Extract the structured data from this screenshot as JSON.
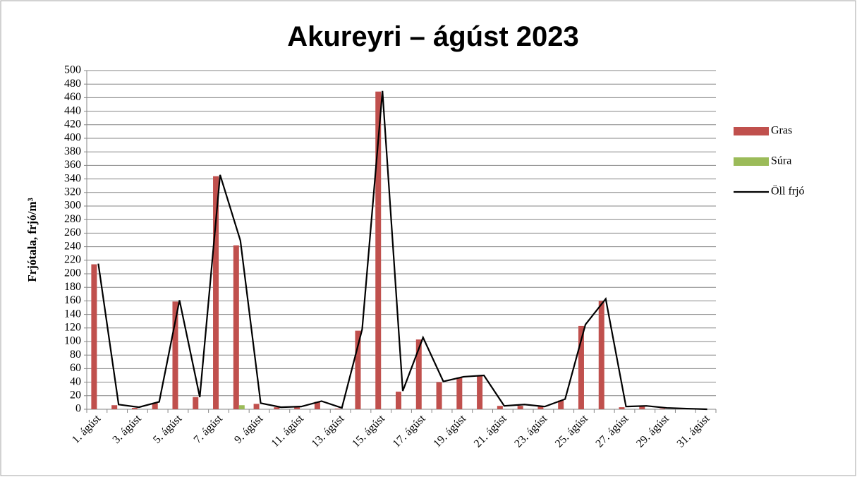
{
  "chart_data": {
    "type": "bar-line",
    "title": "Akureyri – ágúst 2023",
    "y_label": "Frjótala, frjó/m³",
    "categories": [
      "1. ágúst",
      null,
      "3. ágúst",
      null,
      "5. ágúst",
      null,
      "7. ágúst",
      null,
      "9. ágúst",
      null,
      "11. ágúst",
      null,
      "13. ágúst",
      null,
      "15. ágúst",
      null,
      "17. ágúst",
      null,
      "19. ágúst",
      null,
      "21. ágúst",
      null,
      "23. ágúst",
      null,
      "25. ágúst",
      null,
      "27. ágúst",
      null,
      "29. ágúst",
      null,
      "31. ágúst"
    ],
    "series": [
      {
        "name": "Gras",
        "color": "#c0504d",
        "kind": "bar",
        "values": [
          214,
          6,
          2,
          9,
          159,
          18,
          344,
          242,
          8,
          3,
          3,
          11,
          1,
          116,
          469,
          26,
          103,
          40,
          47,
          49,
          5,
          5,
          4,
          13,
          123,
          160,
          3,
          4,
          1,
          1,
          0
        ]
      },
      {
        "name": "Súra",
        "color": "#9bbb59",
        "kind": "bar",
        "values": [
          0,
          0,
          0,
          0,
          0,
          0,
          0,
          6,
          0,
          0,
          0,
          0,
          0,
          0,
          0,
          0,
          0,
          0,
          0,
          0,
          0,
          0,
          0,
          0,
          0,
          0,
          0,
          0,
          0,
          0,
          0
        ]
      },
      {
        "name": "Öll frjó",
        "color": "#000000",
        "kind": "line",
        "values": [
          215,
          7,
          3,
          11,
          161,
          18,
          346,
          249,
          9,
          3,
          4,
          12,
          2,
          118,
          470,
          27,
          106,
          41,
          48,
          50,
          5,
          7,
          4,
          15,
          125,
          163,
          4,
          5,
          2,
          1,
          0
        ]
      }
    ],
    "ylim": [
      0,
      500
    ],
    "yticks": [
      0,
      20,
      40,
      60,
      80,
      100,
      120,
      140,
      160,
      180,
      200,
      220,
      240,
      260,
      280,
      300,
      320,
      340,
      360,
      380,
      400,
      420,
      440,
      460,
      480,
      500
    ],
    "grid": true,
    "legend": "right"
  }
}
